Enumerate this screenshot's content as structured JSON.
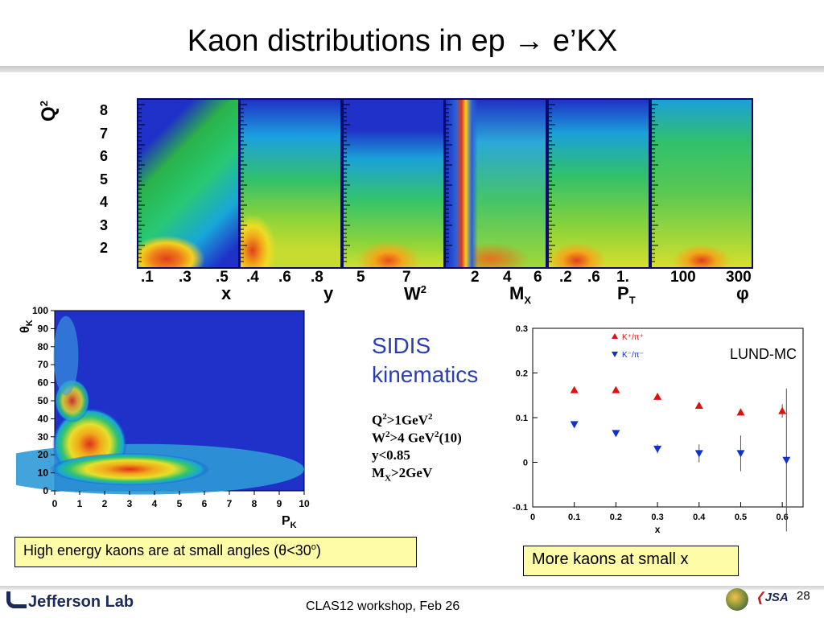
{
  "title": "Kaon distributions in ep → e’KX",
  "top_row": {
    "q2_label": "Q",
    "q2_sup": "2",
    "q2_ticks": [
      "8",
      "7",
      "6",
      "5",
      "4",
      "3",
      "2"
    ],
    "panels": [
      {
        "ticks": [
          ".1",
          ".3",
          ".5"
        ],
        "label": "x",
        "label_sup": ""
      },
      {
        "ticks": [
          ".4",
          ".6",
          ".8"
        ],
        "label": "y",
        "label_sup": ""
      },
      {
        "ticks": [
          "5",
          "7"
        ],
        "label": "W",
        "label_sup": "2"
      },
      {
        "ticks": [
          "2",
          "4",
          "6"
        ],
        "label": "M",
        "label_sub": "X"
      },
      {
        "ticks": [
          ".2",
          ".6",
          "1."
        ],
        "label": "P",
        "label_sub": "T"
      },
      {
        "ticks": [
          "100",
          "300"
        ],
        "label": "φ",
        "label_sup": ""
      }
    ]
  },
  "sidis": {
    "heading_line1": "SIDIS",
    "heading_line2": "kinematics",
    "cuts": [
      {
        "a": "Q",
        "sup": "2",
        "b": ">1GeV",
        "sup2": "2",
        "c": ""
      },
      {
        "a": "W",
        "sup": "2",
        "b": ">4 GeV",
        "sup2": "2",
        "c": "(10)"
      },
      {
        "a": "y<0.85",
        "sup": "",
        "b": "",
        "sup2": "",
        "c": ""
      },
      {
        "a": "M",
        "sub": "X",
        "b": ">2GeV",
        "sup2": "",
        "c": ""
      }
    ]
  },
  "left_note": {
    "text_a": "High energy kaons are at small angles (",
    "theta": "θ",
    "text_b": "<30",
    "sup": "o",
    "text_c": ")"
  },
  "right_note": "More kaons at small x",
  "footer": "CLAS12 workshop,  Feb 26",
  "page_number": "28",
  "logo_text": "Jefferson Lab",
  "logo2_text": "JSA",
  "chart_data": [
    {
      "type": "heatmap",
      "title": "",
      "xlabel": "P",
      "xlabel_sub": "K",
      "ylabel": "θ",
      "ylabel_sub": "K",
      "xlim": [
        0,
        10
      ],
      "ylim": [
        0,
        100
      ],
      "x_ticks": [
        "0",
        "1",
        "2",
        "3",
        "4",
        "5",
        "6",
        "7",
        "8",
        "9",
        "10"
      ],
      "y_ticks": [
        "0",
        "10",
        "20",
        "30",
        "40",
        "50",
        "60",
        "70",
        "80",
        "90",
        "100"
      ],
      "colors": {
        "background": "#1f31c8"
      }
    },
    {
      "type": "scatter",
      "title": "",
      "xlabel": "x",
      "ylabel": "",
      "xlim": [
        0,
        0.65
      ],
      "ylim": [
        -0.1,
        0.3
      ],
      "x_ticks": [
        "0",
        "0.1",
        "0.2",
        "0.3",
        "0.4",
        "0.5",
        "0.6"
      ],
      "y_ticks": [
        "-0.1",
        "0",
        "0.1",
        "0.2",
        "0.3"
      ],
      "annotation": "LUND-MC",
      "series": [
        {
          "name": "K⁺/π⁺",
          "color": "#e01010",
          "marker": "triangle-up",
          "x": [
            0.1,
            0.2,
            0.3,
            0.4,
            0.5,
            0.6
          ],
          "y": [
            0.162,
            0.162,
            0.147,
            0.127,
            0.112,
            0.115
          ],
          "err": [
            0,
            0,
            0,
            0,
            0.005,
            0.015
          ]
        },
        {
          "name": "K⁻/π⁻",
          "color": "#1030d0",
          "marker": "triangle-down",
          "x": [
            0.1,
            0.2,
            0.3,
            0.4,
            0.5,
            0.6
          ],
          "y": [
            0.085,
            0.065,
            0.03,
            0.02,
            0.02,
            0.005
          ],
          "err": [
            0,
            0,
            0.01,
            0.02,
            0.04,
            0.16
          ]
        }
      ]
    }
  ]
}
